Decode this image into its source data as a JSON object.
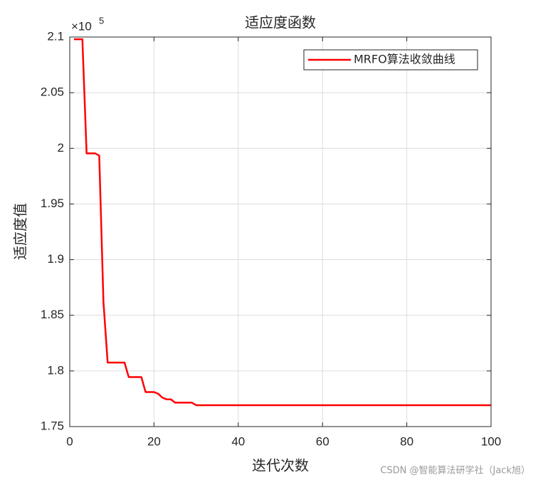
{
  "chart_data": {
    "type": "line",
    "title": "适应度函数",
    "xlabel": "迭代次数",
    "ylabel": "适应度值",
    "y_scale_label": "×10",
    "y_scale_exponent": "5",
    "watermark": "CSDN @智能算法研学社（Jack旭）",
    "x": [
      1,
      2,
      3,
      4,
      5,
      6,
      7,
      8,
      9,
      10,
      11,
      12,
      13,
      14,
      15,
      16,
      17,
      18,
      19,
      20,
      21,
      22,
      23,
      24,
      25,
      26,
      27,
      28,
      29,
      30,
      31,
      32,
      33,
      34,
      35,
      36,
      37,
      38,
      39,
      40,
      41,
      42,
      43,
      44,
      45,
      46,
      47,
      48,
      49,
      50,
      51,
      52,
      53,
      54,
      55,
      56,
      57,
      58,
      59,
      60,
      61,
      62,
      63,
      64,
      65,
      66,
      67,
      68,
      69,
      70,
      71,
      72,
      73,
      74,
      75,
      76,
      77,
      78,
      79,
      80,
      81,
      82,
      83,
      84,
      85,
      86,
      87,
      88,
      89,
      90,
      91,
      92,
      93,
      94,
      95,
      96,
      97,
      98,
      99,
      100
    ],
    "series": [
      {
        "name": "MRFO算法收敛曲线",
        "color": "#ff0000",
        "values": [
          2.098,
          2.098,
          2.098,
          1.9955,
          1.9955,
          1.9955,
          1.9935,
          1.862,
          1.8075,
          1.8075,
          1.8075,
          1.8075,
          1.8075,
          1.7945,
          1.7945,
          1.7945,
          1.7945,
          1.781,
          1.781,
          1.781,
          1.7795,
          1.776,
          1.7745,
          1.7745,
          1.7715,
          1.7715,
          1.7715,
          1.7715,
          1.7715,
          1.7692,
          1.7692,
          1.7692,
          1.7692,
          1.7692,
          1.7692,
          1.7692,
          1.7692,
          1.7692,
          1.7692,
          1.7692,
          1.7692,
          1.7692,
          1.7692,
          1.7692,
          1.7692,
          1.7692,
          1.7692,
          1.7692,
          1.7692,
          1.7692,
          1.7692,
          1.7692,
          1.7692,
          1.7692,
          1.7692,
          1.7692,
          1.7692,
          1.7692,
          1.7692,
          1.7692,
          1.7692,
          1.7692,
          1.7692,
          1.7692,
          1.7692,
          1.7692,
          1.7692,
          1.7692,
          1.7692,
          1.7692,
          1.7692,
          1.7692,
          1.7692,
          1.7692,
          1.7692,
          1.7692,
          1.7692,
          1.7692,
          1.7692,
          1.7692,
          1.7692,
          1.7692,
          1.7692,
          1.7692,
          1.7692,
          1.7692,
          1.7692,
          1.7692,
          1.7692,
          1.7692,
          1.7692,
          1.7692,
          1.7692,
          1.7692,
          1.7692,
          1.7692,
          1.7692,
          1.7692,
          1.7692,
          1.7692
        ]
      }
    ],
    "xlim": [
      0,
      100
    ],
    "xticks": [
      0,
      20,
      40,
      60,
      80,
      100
    ],
    "ylim": [
      1.75,
      2.1
    ],
    "yticks": [
      1.75,
      1.8,
      1.85,
      1.9,
      1.95,
      2,
      2.05,
      2.1
    ],
    "grid": true,
    "legend": "top-right"
  }
}
